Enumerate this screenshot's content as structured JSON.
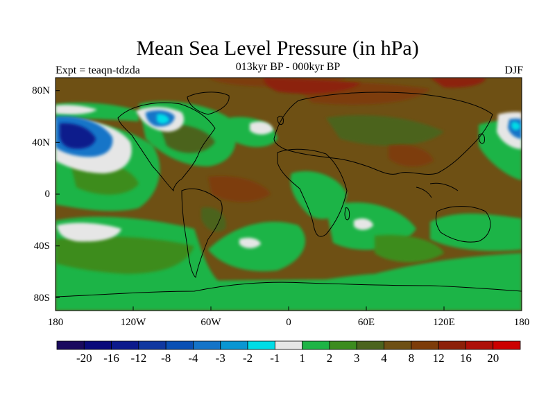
{
  "title": "Mean Sea Level Pressure (in hPa)",
  "subtitle": "013kyr BP - 000kyr BP",
  "experiment": "Expt = teaqn-tdzda",
  "season": "DJF",
  "lat_labels": [
    "80N",
    "40N",
    "0",
    "40S",
    "80S"
  ],
  "lon_labels": [
    "180",
    "120W",
    "60W",
    "0",
    "60E",
    "120E",
    "180"
  ],
  "colorbar": {
    "colors": [
      "#1a0a5e",
      "#0a0a7a",
      "#0c1a8c",
      "#1038a0",
      "#0a50b4",
      "#1474c8",
      "#0a96d2",
      "#00dce6",
      "#e6e6e6",
      "#1eb446",
      "#3c8c1e",
      "#4b641e",
      "#6e5014",
      "#7d3c0a",
      "#8c2008",
      "#ae1008",
      "#cc0000"
    ],
    "labels": [
      "-20",
      "-16",
      "-12",
      "-8",
      "-4",
      "-3",
      "-2",
      "-1",
      "1",
      "2",
      "3",
      "4",
      "8",
      "12",
      "16",
      "20"
    ]
  },
  "map_colors": {
    "base": "#6e5014",
    "green": "#1eb446",
    "darkgreen": "#3c8c1e",
    "olive": "#4b641e",
    "brown": "#7d3c0a",
    "red": "#8c2008",
    "white": "#e6e6e6",
    "blue": "#1474c8",
    "deepblue": "#0c1a8c",
    "cyan": "#00dce6"
  }
}
